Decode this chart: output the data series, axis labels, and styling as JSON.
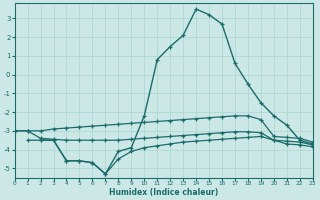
{
  "xlabel": "Humidex (Indice chaleur)",
  "bg_color": "#cce8e6",
  "grid_color": "#aad4d0",
  "line_color": "#1a6b6b",
  "xlim": [
    0,
    23
  ],
  "ylim": [
    -5.5,
    3.8
  ],
  "yticks": [
    -5,
    -4,
    -3,
    -2,
    -1,
    0,
    1,
    2,
    3
  ],
  "xticks": [
    0,
    1,
    2,
    3,
    4,
    5,
    6,
    7,
    8,
    9,
    10,
    11,
    12,
    13,
    14,
    15,
    16,
    17,
    18,
    19,
    20,
    21,
    22,
    23
  ],
  "line1_x": [
    0,
    1,
    2,
    3,
    4,
    5,
    6,
    7,
    8,
    9,
    10,
    11,
    12,
    13,
    14,
    15,
    16,
    17,
    18,
    19,
    20,
    21,
    22,
    23
  ],
  "line1_y": [
    -3.0,
    -3.0,
    -3.0,
    -2.9,
    -2.85,
    -2.8,
    -2.75,
    -2.7,
    -2.65,
    -2.6,
    -2.55,
    -2.5,
    -2.45,
    -2.4,
    -2.35,
    -2.3,
    -2.25,
    -2.2,
    -2.2,
    -2.4,
    -3.3,
    -3.35,
    -3.4,
    -3.6
  ],
  "line2_x": [
    0,
    1,
    2,
    3,
    4,
    5,
    6,
    7,
    8,
    9,
    10,
    11,
    12,
    13,
    14,
    15,
    16,
    17,
    18,
    19,
    20,
    21,
    22,
    23
  ],
  "line2_y": [
    -3.0,
    -3.0,
    -3.4,
    -3.45,
    -3.5,
    -3.5,
    -3.5,
    -3.5,
    -3.5,
    -3.45,
    -3.4,
    -3.35,
    -3.3,
    -3.25,
    -3.2,
    -3.15,
    -3.1,
    -3.05,
    -3.05,
    -3.1,
    -3.5,
    -3.55,
    -3.6,
    -3.75
  ],
  "line3_x": [
    1,
    2,
    3,
    4,
    5,
    6,
    7,
    8,
    9,
    10,
    11,
    12,
    13,
    14,
    15,
    16,
    17,
    18,
    19,
    20,
    21,
    22,
    23
  ],
  "line3_y": [
    -3.5,
    -3.5,
    -3.5,
    -4.6,
    -4.6,
    -4.7,
    -5.3,
    -4.5,
    -4.1,
    -3.9,
    -3.8,
    -3.7,
    -3.6,
    -3.55,
    -3.5,
    -3.45,
    -3.4,
    -3.35,
    -3.3,
    -3.5,
    -3.7,
    -3.75,
    -3.85
  ],
  "line4_x": [
    2,
    3,
    4,
    5,
    6,
    7,
    8,
    9,
    10,
    11,
    12,
    13,
    14,
    15,
    16,
    17,
    18,
    19,
    20,
    21,
    22,
    23
  ],
  "line4_y": [
    -3.5,
    -3.5,
    -4.6,
    -4.6,
    -4.7,
    -5.3,
    -4.1,
    -3.9,
    -2.2,
    0.8,
    1.5,
    2.1,
    3.5,
    3.2,
    2.7,
    0.6,
    -0.5,
    -1.5,
    -2.2,
    -2.7,
    -3.5,
    -3.7
  ]
}
